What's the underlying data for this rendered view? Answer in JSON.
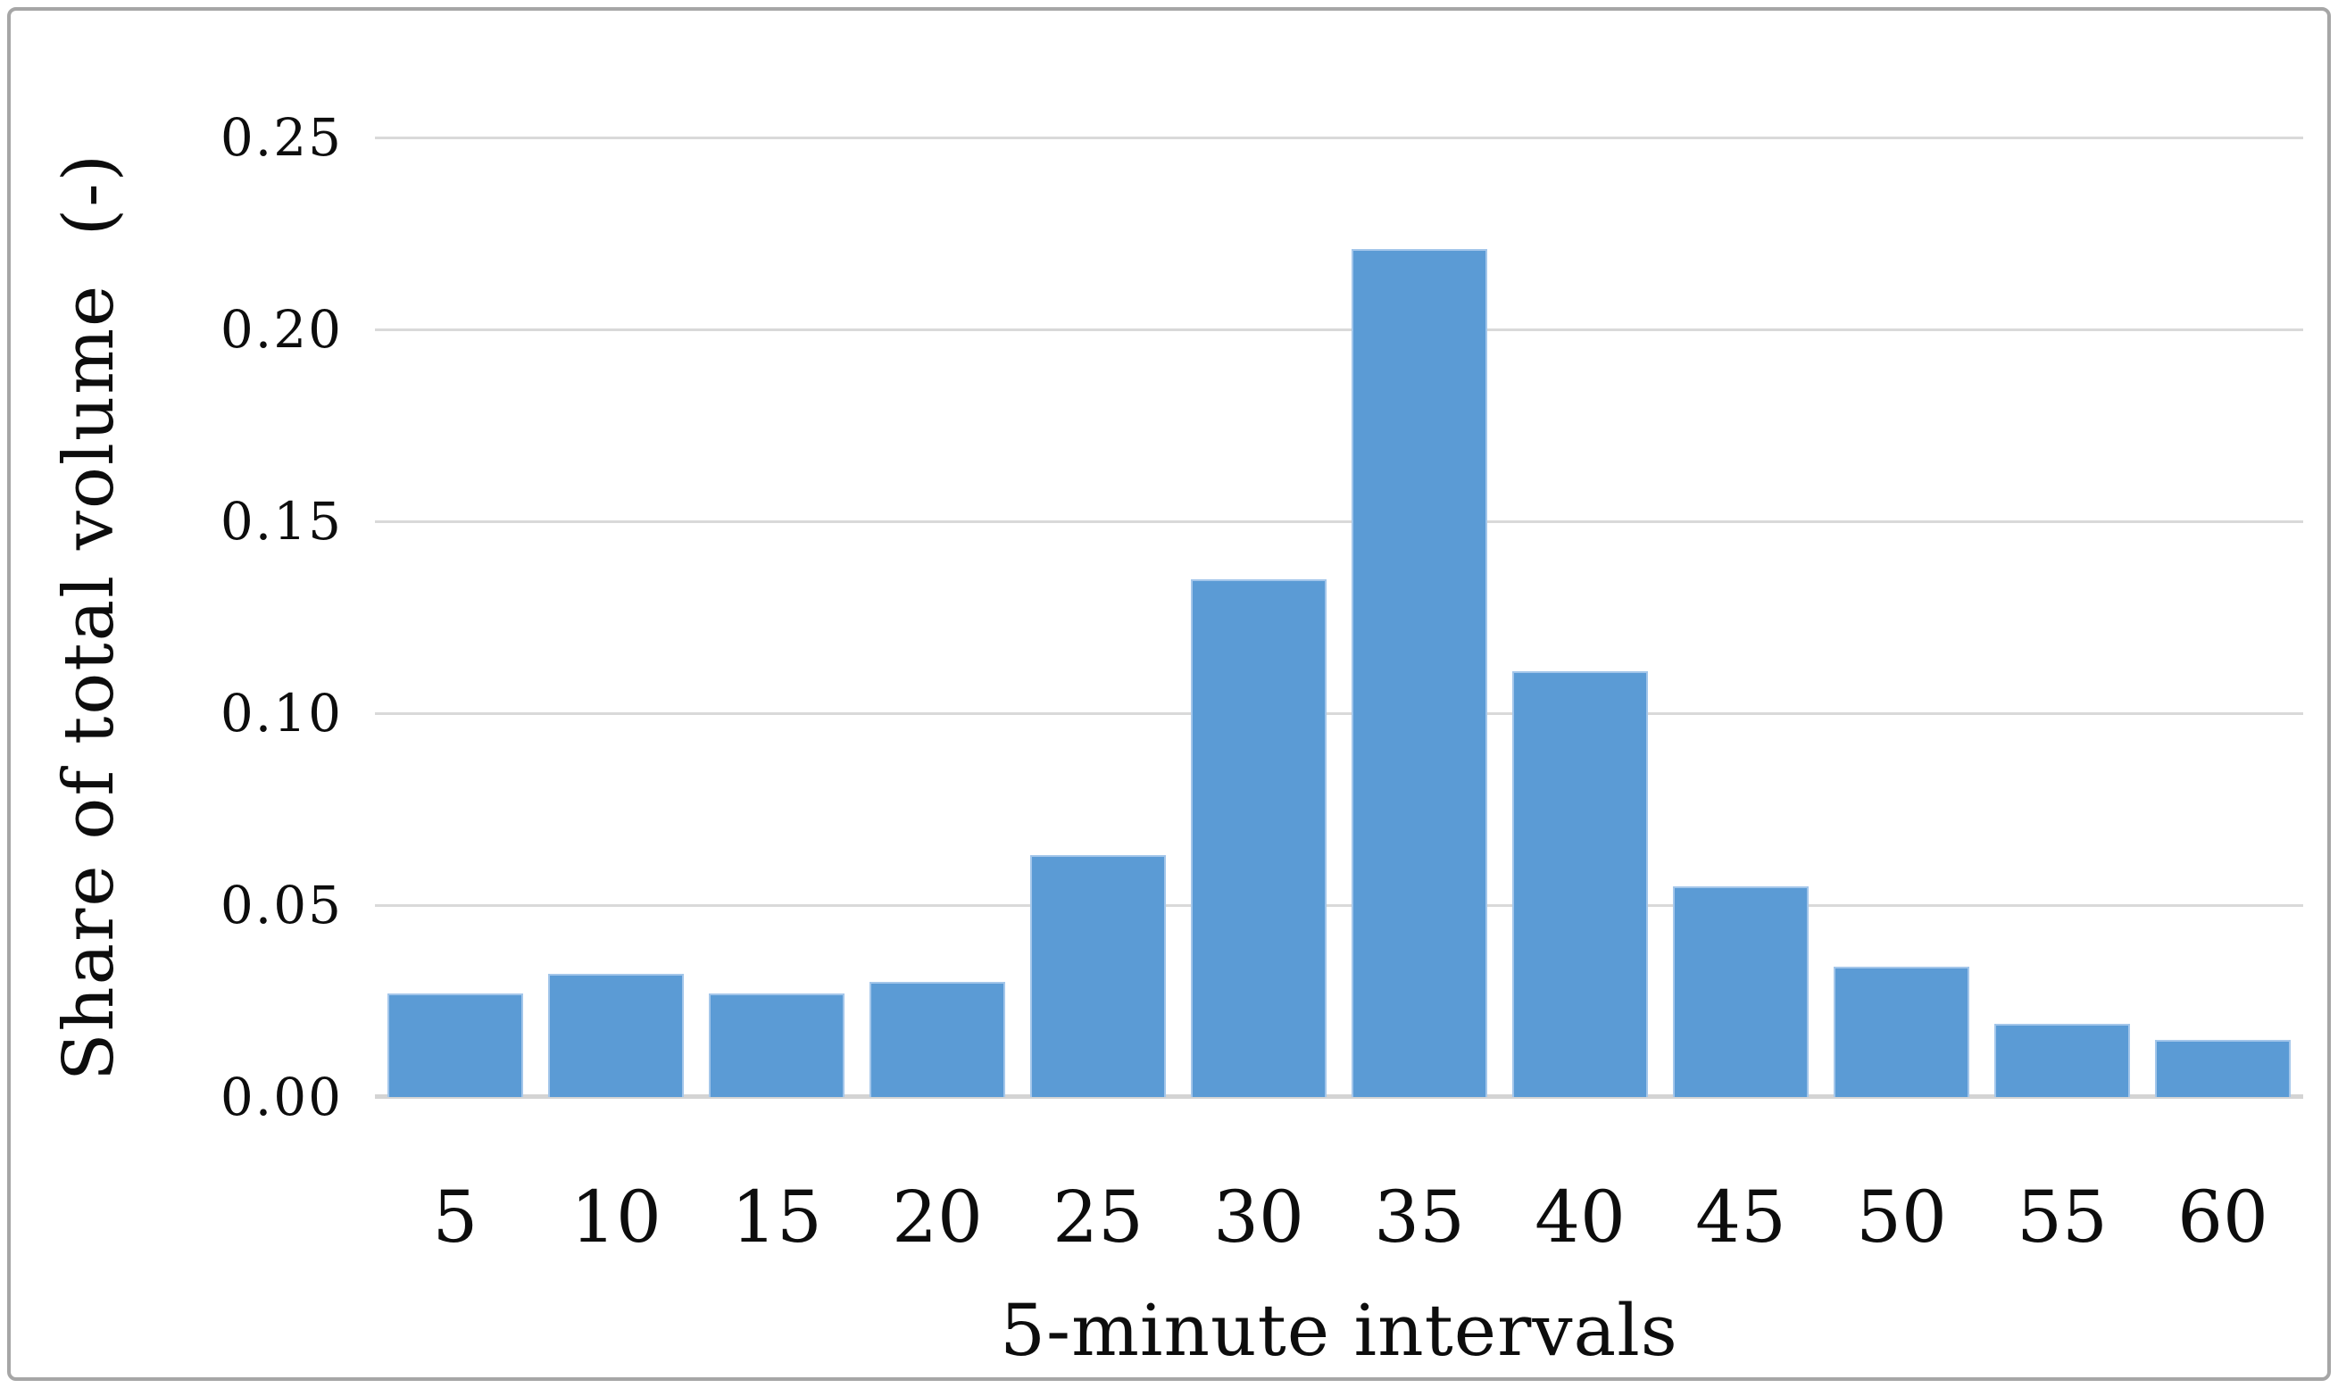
{
  "figure": {
    "background": "#ffffff",
    "border_color": "#a6a6a6"
  },
  "chart_data": {
    "type": "bar",
    "title": "",
    "xlabel": "5-minute intervals",
    "ylabel": "Share of total volume  (-)",
    "categories": [
      "5",
      "10",
      "15",
      "20",
      "25",
      "30",
      "35",
      "40",
      "45",
      "50",
      "55",
      "60"
    ],
    "values": [
      0.027,
      0.032,
      0.027,
      0.03,
      0.063,
      0.135,
      0.221,
      0.111,
      0.055,
      0.034,
      0.019,
      0.015
    ],
    "ylim": [
      0,
      0.25
    ],
    "ytick_step": 0.05,
    "ytick_labels": [
      "0.00",
      "0.05",
      "0.10",
      "0.15",
      "0.20",
      "0.25"
    ],
    "grid": true,
    "legend": false,
    "bar_color": "#5b9bd5",
    "bar_edge_color": "#a3c6ea",
    "gridline_color": "#d9d9d9",
    "axis_line_color": "#d4d4d4",
    "text_color": "#0d0d0d"
  }
}
